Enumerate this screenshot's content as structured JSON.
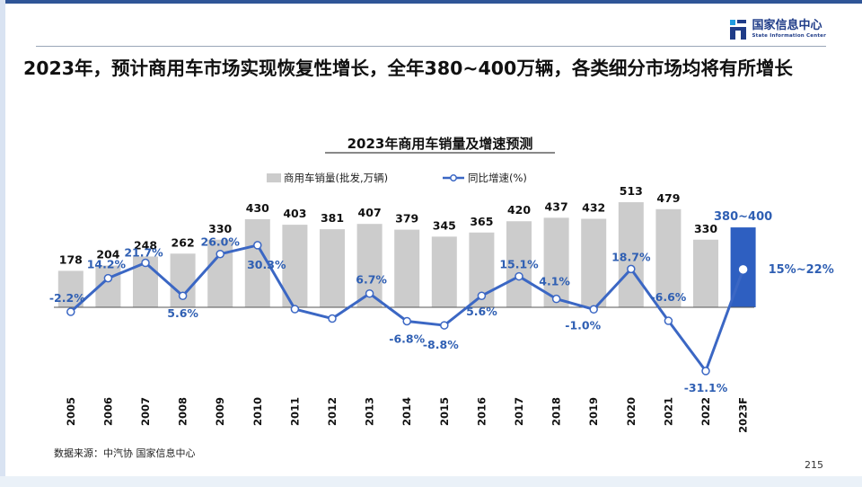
{
  "header": {
    "logo_cn": "国家信息中心",
    "logo_en": "State Information Center",
    "headline": "2023年，预计商用车市场实现恢复性增长，全年380~400万辆，各类细分市场均将有所增长"
  },
  "chart_data": {
    "type": "bar+line",
    "title": "2023年商用车销量及增速预测",
    "categories": [
      "2005",
      "2006",
      "2007",
      "2008",
      "2009",
      "2010",
      "2011",
      "2012",
      "2013",
      "2014",
      "2015",
      "2016",
      "2017",
      "2018",
      "2019",
      "2020",
      "2021",
      "2022",
      "2023F"
    ],
    "series": [
      {
        "name": "商用车销量(批发,万辆)",
        "kind": "bar",
        "values": [
          178,
          204,
          248,
          262,
          330,
          430,
          403,
          381,
          407,
          379,
          345,
          365,
          420,
          437,
          432,
          513,
          479,
          330,
          390
        ],
        "labels": [
          "178",
          "204",
          "248",
          "262",
          "330",
          "430",
          "403",
          "381",
          "407",
          "379",
          "345",
          "365",
          "420",
          "437",
          "432",
          "513",
          "479",
          "330",
          "380~400"
        ]
      },
      {
        "name": "同比增速(%)",
        "kind": "line",
        "values": [
          -2.2,
          14.2,
          21.7,
          5.6,
          26.0,
          30.3,
          -0.9,
          -5.5,
          6.7,
          -6.8,
          -8.8,
          5.6,
          15.1,
          4.1,
          -1.0,
          18.7,
          -6.6,
          -31.1,
          18.5
        ],
        "labels": [
          "-2.2%",
          "14.2%",
          "21.7%",
          "5.6%",
          "26.0%",
          "30.3%",
          "",
          "",
          "6.7%",
          "-6.8%",
          "-8.8%",
          "5.6%",
          "15.1%",
          "4.1%",
          "-1.0%",
          "18.7%",
          "-6.6%",
          "-31.1%",
          "15%~22%"
        ]
      }
    ],
    "forecast_label": "380~400",
    "forecast_growth_label": "15%~22%",
    "legend": [
      "商用车销量(批发,万辆)",
      "同比增速(%)"
    ],
    "colors": {
      "bar": "#cccccc",
      "forecast_bar": "#2e5fc1",
      "line": "#3b67c4",
      "growth_label": "#2f5fb3",
      "value_label": "#111111"
    }
  },
  "footer": {
    "source": "数据来源：中汽协  国家信息中心",
    "page_number": "215"
  }
}
